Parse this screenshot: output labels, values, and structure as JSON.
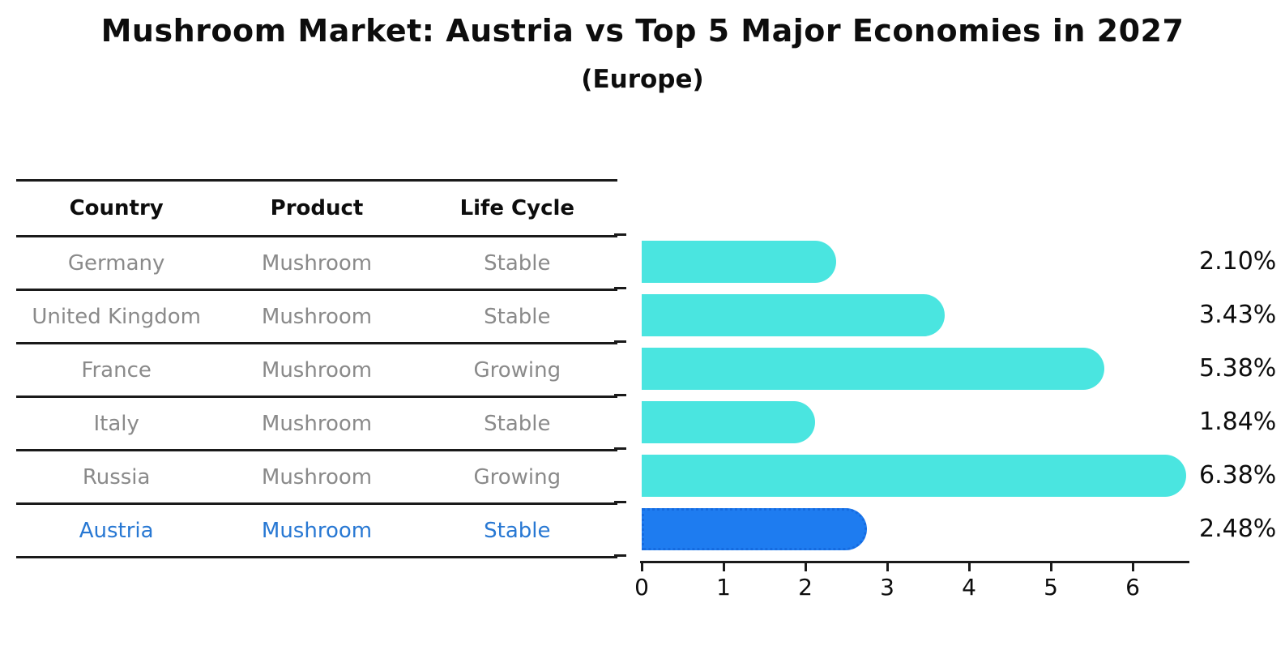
{
  "title": "Mushroom Market: Austria vs Top 5 Major Economies in 2027",
  "subtitle": "(Europe)",
  "table": {
    "headers": [
      "Country",
      "Product",
      "Life Cycle"
    ],
    "rows": [
      {
        "country": "Germany",
        "product": "Mushroom",
        "life_cycle": "Stable",
        "highlight": false
      },
      {
        "country": "United Kingdom",
        "product": "Mushroom",
        "life_cycle": "Stable",
        "highlight": false
      },
      {
        "country": "France",
        "product": "Mushroom",
        "life_cycle": "Growing",
        "highlight": false
      },
      {
        "country": "Italy",
        "product": "Mushroom",
        "life_cycle": "Stable",
        "highlight": false
      },
      {
        "country": "Russia",
        "product": "Mushroom",
        "life_cycle": "Growing",
        "highlight": false
      },
      {
        "country": "Austria",
        "product": "Mushroom",
        "life_cycle": "Stable",
        "highlight": true
      }
    ]
  },
  "chart_data": {
    "type": "bar",
    "orientation": "horizontal",
    "title": "Mushroom Market: Austria vs Top 5 Major Economies in 2027",
    "subtitle": "(Europe)",
    "categories": [
      "Germany",
      "United Kingdom",
      "France",
      "Italy",
      "Russia",
      "Austria"
    ],
    "values": [
      2.1,
      3.43,
      5.38,
      1.84,
      6.38,
      2.48
    ],
    "value_labels": [
      "2.10%",
      "3.43%",
      "5.38%",
      "1.84%",
      "6.38%",
      "2.48%"
    ],
    "xlabel": "",
    "ylabel": "",
    "xlim": [
      0,
      6.68
    ],
    "xticks": [
      0,
      1,
      2,
      3,
      4,
      5,
      6
    ],
    "grid": false,
    "legend": false,
    "highlight_index": 5,
    "highlight_style": "dotted-border"
  },
  "colors": {
    "bar": "#4ae5e0",
    "highlight_bar": "#1e7cf0",
    "highlight_border": "#156be0",
    "highlight_text": "#2878d3",
    "text": "#0d0d0d",
    "muted_text": "#8a8a8a",
    "line": "#1a1a1a",
    "background": "#ffffff"
  }
}
